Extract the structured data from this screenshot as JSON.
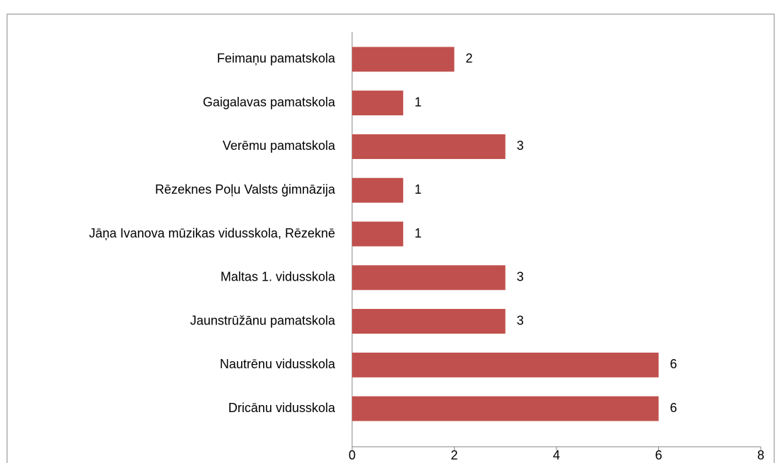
{
  "chart_data": {
    "type": "bar",
    "orientation": "horizontal",
    "categories": [
      "Feimaņu pamatskola",
      "Gaigalavas pamatskola",
      "Verēmu pamatskola",
      "Rēzeknes Poļu Valsts ģimnāzija",
      "Jāņa Ivanova mūzikas vidusskola, Rēzeknē",
      "Maltas 1. vidusskola",
      "Jaunstrūžānu pamatskola",
      "Nautrēnu vidusskola",
      "Dricānu vidusskola"
    ],
    "values": [
      2,
      1,
      3,
      1,
      1,
      3,
      3,
      6,
      6
    ],
    "color": "#c0504d",
    "xlim": [
      0,
      8
    ],
    "xticks": [
      0,
      2,
      4,
      6,
      8
    ],
    "grid": false
  }
}
